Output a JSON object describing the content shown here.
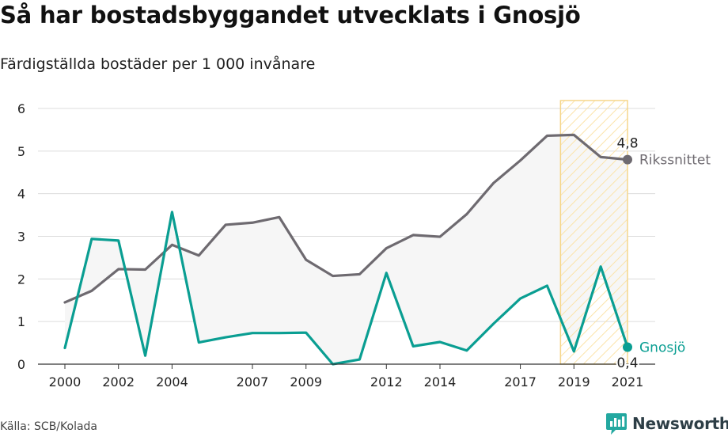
{
  "title": "Så har bostadsbyggandet utvecklats i Gnosjö",
  "subtitle": "Färdigställda bostäder per 1 000 invånare",
  "source": "Källa: SCB/Kolada",
  "brand": {
    "name": "Newsworthy",
    "color": "#2d3e46",
    "accent": "#23a8a0",
    "icon": "chat-bar-chart-icon"
  },
  "chart_data": {
    "type": "line",
    "title": "Så har bostadsbyggandet utvecklats i Gnosjö",
    "subtitle": "Färdigställda bostäder per 1 000 invånare",
    "xlabel": "",
    "ylabel": "",
    "ylim": [
      0,
      6
    ],
    "xlim": [
      2000,
      2021
    ],
    "y_ticks": [
      "0",
      "1",
      "2",
      "3",
      "4",
      "5",
      "6"
    ],
    "x_ticks": [
      "2000",
      "2002",
      "2004",
      "2007",
      "2009",
      "2012",
      "2014",
      "2017",
      "2019",
      "2021"
    ],
    "grid": "horizontal",
    "x": [
      2000,
      2001,
      2002,
      2003,
      2004,
      2005,
      2006,
      2007,
      2008,
      2009,
      2010,
      2011,
      2012,
      2013,
      2014,
      2015,
      2016,
      2017,
      2018,
      2019,
      2020,
      2021
    ],
    "series": [
      {
        "name": "Rikssnittet",
        "color": "#6e6a70",
        "values": [
          1.45,
          1.72,
          2.23,
          2.22,
          2.8,
          2.55,
          3.27,
          3.32,
          3.45,
          2.45,
          2.07,
          2.11,
          2.72,
          3.03,
          2.99,
          3.52,
          4.25,
          4.78,
          5.36,
          5.38,
          4.86,
          4.8
        ],
        "end_label": "4,8"
      },
      {
        "name": "Gnosjö",
        "color": "#0a9e92",
        "values": [
          0.38,
          2.94,
          2.9,
          0.2,
          3.57,
          0.51,
          0.63,
          0.73,
          0.73,
          0.74,
          0.0,
          0.11,
          2.14,
          0.42,
          0.52,
          0.32,
          0.95,
          1.54,
          1.84,
          0.3,
          2.29,
          0.4
        ],
        "end_label": "0,4"
      }
    ],
    "fill_between": {
      "color": "#f6f6f6"
    },
    "highlight": {
      "from": 2018.5,
      "to": 2021,
      "stroke": "#f5d68a",
      "hatch": "#fbe3a9"
    }
  }
}
